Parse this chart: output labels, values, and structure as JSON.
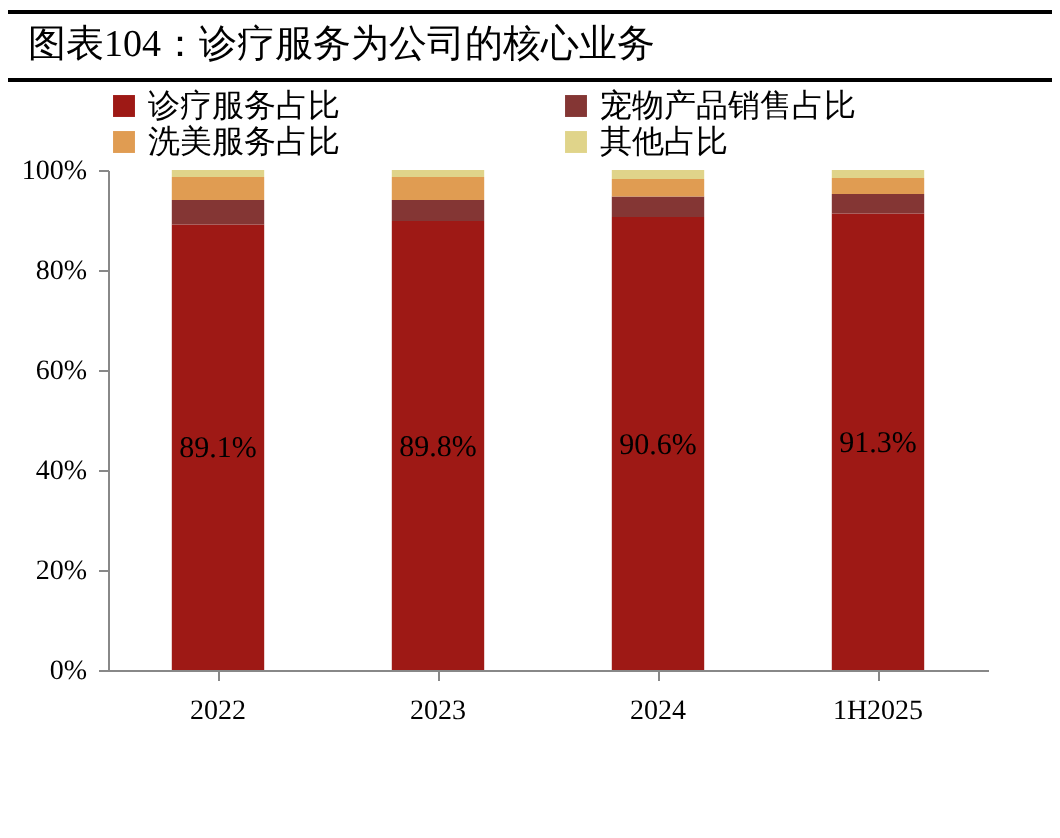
{
  "chart_data": {
    "type": "bar",
    "title": "图表104：诊疗服务为公司的核心业务",
    "stacked": true,
    "categories": [
      "2022",
      "2023",
      "2024",
      "1H2025"
    ],
    "series": [
      {
        "name": "诊疗服务占比",
        "color": "#9e1915",
        "values": [
          89.1,
          89.8,
          90.6,
          91.3
        ],
        "value_labels": [
          "89.1%",
          "89.8%",
          "90.6%",
          "91.3%"
        ]
      },
      {
        "name": "宠物产品销售占比",
        "color": "#843634",
        "values": [
          4.9,
          4.2,
          4.1,
          3.9
        ]
      },
      {
        "name": "洗美服务占比",
        "color": "#e09c52",
        "values": [
          4.6,
          4.6,
          3.5,
          3.2
        ]
      },
      {
        "name": "其他占比",
        "color": "#e0d48a",
        "values": [
          1.4,
          1.4,
          1.8,
          1.6
        ]
      }
    ],
    "ylim": [
      0,
      100
    ],
    "yticks": [
      {
        "value": 0,
        "label": "0%"
      },
      {
        "value": 20,
        "label": "20%"
      },
      {
        "value": 40,
        "label": "40%"
      },
      {
        "value": 60,
        "label": "60%"
      },
      {
        "value": 80,
        "label": "80%"
      },
      {
        "value": 100,
        "label": "100%"
      }
    ],
    "grid": false,
    "legend": "top"
  }
}
